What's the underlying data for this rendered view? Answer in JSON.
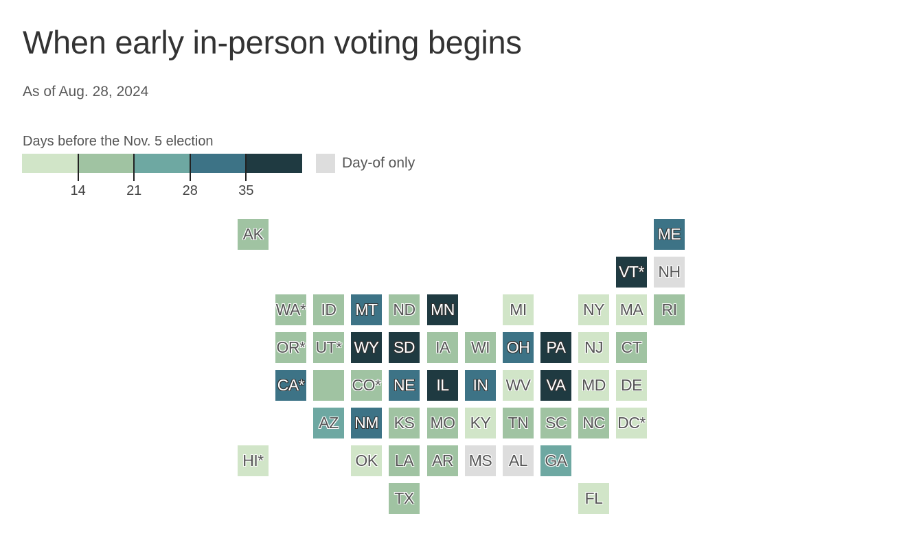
{
  "title": "When early in-person voting begins",
  "subtitle": "As of Aug. 28, 2024",
  "legend": {
    "title": "Days before the Nov. 5 election",
    "ticks": [
      "14",
      "21",
      "28",
      "35"
    ],
    "colors": [
      "#d1e5c8",
      "#a0c3a2",
      "#6ea8a2",
      "#3d7386",
      "#1f3a41"
    ],
    "day_of_label": "Day-of only",
    "day_of_color": "#dddddd"
  },
  "chart_data": {
    "type": "tile-map",
    "bins": [
      {
        "range": "<14",
        "color": "#d1e5c8"
      },
      {
        "range": "14-21",
        "color": "#a0c3a2"
      },
      {
        "range": "21-28",
        "color": "#6ea8a2"
      },
      {
        "range": "28-35",
        "color": "#3d7386"
      },
      {
        "range": "35+",
        "color": "#1f3a41"
      },
      {
        "range": "Day-of only",
        "color": "#dddddd"
      }
    ],
    "states": [
      {
        "label": "AK",
        "row": 0,
        "col": 0,
        "bin": 1
      },
      {
        "label": "ME",
        "row": 0,
        "col": 11,
        "bin": 3
      },
      {
        "label": "VT*",
        "row": 1,
        "col": 10,
        "bin": 4
      },
      {
        "label": "NH",
        "row": 1,
        "col": 11,
        "bin": 5
      },
      {
        "label": "WA*",
        "row": 2,
        "col": 1,
        "bin": 1
      },
      {
        "label": "ID",
        "row": 2,
        "col": 2,
        "bin": 1
      },
      {
        "label": "MT",
        "row": 2,
        "col": 3,
        "bin": 3
      },
      {
        "label": "ND",
        "row": 2,
        "col": 4,
        "bin": 1
      },
      {
        "label": "MN",
        "row": 2,
        "col": 5,
        "bin": 4
      },
      {
        "label": "MI",
        "row": 2,
        "col": 7,
        "bin": 0
      },
      {
        "label": "NY",
        "row": 2,
        "col": 9,
        "bin": 0
      },
      {
        "label": "MA",
        "row": 2,
        "col": 10,
        "bin": 0
      },
      {
        "label": "RI",
        "row": 2,
        "col": 11,
        "bin": 1
      },
      {
        "label": "OR*",
        "row": 3,
        "col": 1,
        "bin": 1
      },
      {
        "label": "UT*",
        "row": 3,
        "col": 2,
        "bin": 1
      },
      {
        "label": "WY",
        "row": 3,
        "col": 3,
        "bin": 4
      },
      {
        "label": "SD",
        "row": 3,
        "col": 4,
        "bin": 4
      },
      {
        "label": "IA",
        "row": 3,
        "col": 5,
        "bin": 1
      },
      {
        "label": "WI",
        "row": 3,
        "col": 6,
        "bin": 1
      },
      {
        "label": "OH",
        "row": 3,
        "col": 7,
        "bin": 3
      },
      {
        "label": "PA",
        "row": 3,
        "col": 8,
        "bin": 4
      },
      {
        "label": "NJ",
        "row": 3,
        "col": 9,
        "bin": 0
      },
      {
        "label": "CT",
        "row": 3,
        "col": 10,
        "bin": 1
      },
      {
        "label": "CA*",
        "row": 4,
        "col": 1,
        "bin": 3
      },
      {
        "label": "",
        "row": 4,
        "col": 2,
        "bin": 1
      },
      {
        "label": "CO*",
        "row": 4,
        "col": 3,
        "bin": 1
      },
      {
        "label": "NE",
        "row": 4,
        "col": 4,
        "bin": 3
      },
      {
        "label": "IL",
        "row": 4,
        "col": 5,
        "bin": 4
      },
      {
        "label": "IN",
        "row": 4,
        "col": 6,
        "bin": 3
      },
      {
        "label": "WV",
        "row": 4,
        "col": 7,
        "bin": 0
      },
      {
        "label": "VA",
        "row": 4,
        "col": 8,
        "bin": 4
      },
      {
        "label": "MD",
        "row": 4,
        "col": 9,
        "bin": 0
      },
      {
        "label": "DE",
        "row": 4,
        "col": 10,
        "bin": 0
      },
      {
        "label": "AZ",
        "row": 5,
        "col": 2,
        "bin": 2
      },
      {
        "label": "NM",
        "row": 5,
        "col": 3,
        "bin": 3
      },
      {
        "label": "KS",
        "row": 5,
        "col": 4,
        "bin": 1
      },
      {
        "label": "MO",
        "row": 5,
        "col": 5,
        "bin": 1
      },
      {
        "label": "KY",
        "row": 5,
        "col": 6,
        "bin": 0
      },
      {
        "label": "TN",
        "row": 5,
        "col": 7,
        "bin": 1
      },
      {
        "label": "SC",
        "row": 5,
        "col": 8,
        "bin": 1
      },
      {
        "label": "NC",
        "row": 5,
        "col": 9,
        "bin": 1
      },
      {
        "label": "DC*",
        "row": 5,
        "col": 10,
        "bin": 0
      },
      {
        "label": "HI*",
        "row": 6,
        "col": 0,
        "bin": 0
      },
      {
        "label": "OK",
        "row": 6,
        "col": 3,
        "bin": 0
      },
      {
        "label": "LA",
        "row": 6,
        "col": 4,
        "bin": 1
      },
      {
        "label": "AR",
        "row": 6,
        "col": 5,
        "bin": 1
      },
      {
        "label": "MS",
        "row": 6,
        "col": 6,
        "bin": 5
      },
      {
        "label": "AL",
        "row": 6,
        "col": 7,
        "bin": 5
      },
      {
        "label": "GA",
        "row": 6,
        "col": 8,
        "bin": 2
      },
      {
        "label": "TX",
        "row": 7,
        "col": 4,
        "bin": 1
      },
      {
        "label": "FL",
        "row": 7,
        "col": 9,
        "bin": 0
      }
    ]
  }
}
